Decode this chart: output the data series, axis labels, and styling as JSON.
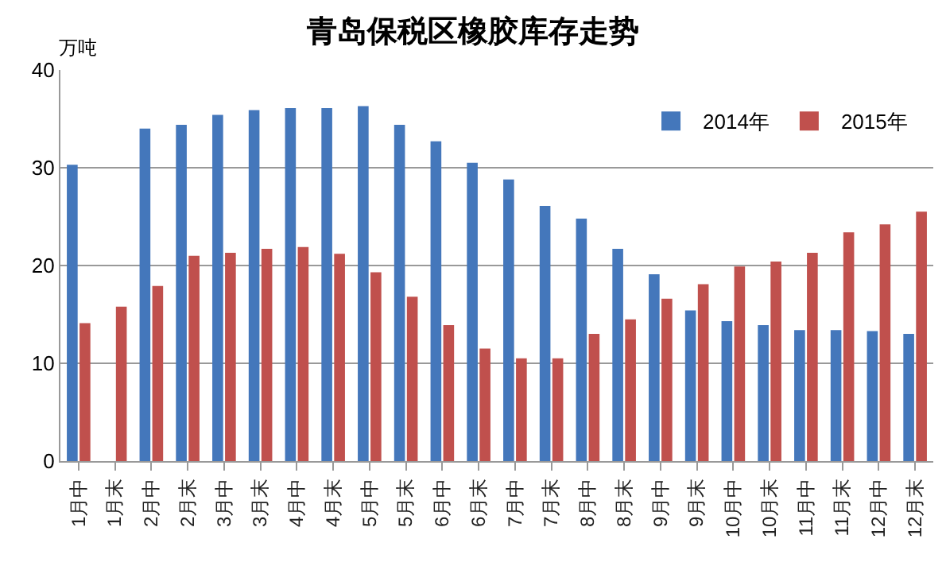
{
  "chart_data": {
    "type": "bar",
    "title": "青岛保税区橡胶库存走势",
    "ylabel": "万吨",
    "categories": [
      "1月中",
      "1月末",
      "2月中",
      "2月末",
      "3月中",
      "3月末",
      "4月中",
      "4月末",
      "5月中",
      "5月末",
      "6月中",
      "6月末",
      "7月中",
      "7月末",
      "8月中",
      "8月末",
      "9月中",
      "9月末",
      "10月中",
      "10月末",
      "11月中",
      "11月末",
      "12月中",
      "12月末"
    ],
    "series": [
      {
        "name": "2014年",
        "color": "#4477bb",
        "values": [
          30.3,
          null,
          34,
          34.4,
          35.4,
          35.9,
          36.1,
          36.1,
          36.3,
          34.4,
          32.7,
          30.5,
          28.8,
          26.1,
          24.8,
          21.7,
          19.1,
          15.4,
          14.3,
          13.9,
          13.4,
          13.4,
          13.3,
          13.0
        ]
      },
      {
        "name": "2015年",
        "color": "#c0504d",
        "values": [
          14.1,
          15.8,
          17.9,
          21.0,
          21.3,
          21.7,
          21.9,
          21.2,
          19.3,
          16.8,
          13.9,
          11.5,
          10.5,
          10.5,
          13.0,
          14.5,
          16.6,
          18.1,
          19.9,
          20.4,
          21.3,
          23.4,
          24.2,
          25.5
        ]
      }
    ],
    "ylim": [
      0,
      40
    ],
    "yticks": [
      0,
      10,
      20,
      30,
      40
    ],
    "grid": "y",
    "legend": "top right"
  }
}
